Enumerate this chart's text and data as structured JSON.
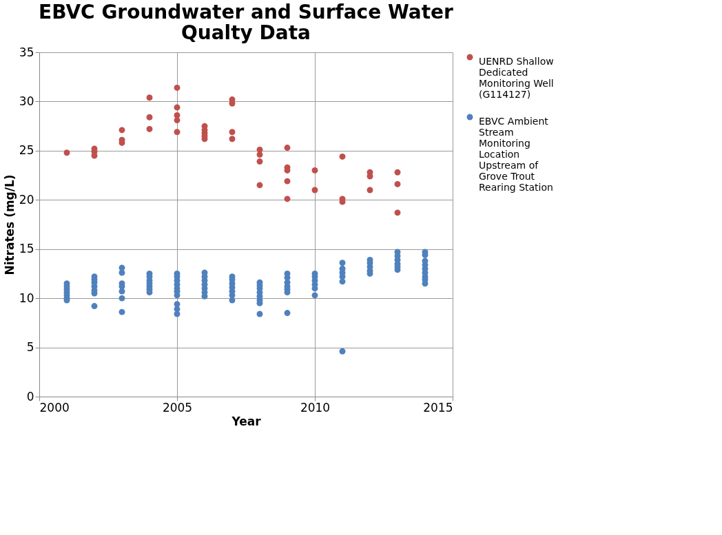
{
  "chart_data": {
    "type": "scatter",
    "title": "EBVC Groundwater and Surface Water Qualty Data",
    "xlabel": "Year",
    "ylabel": "Nitrates (mg/L)",
    "xlim": [
      2000,
      2015
    ],
    "xticks": [
      2000,
      2005,
      2010,
      2015
    ],
    "ylim": [
      0,
      35
    ],
    "yticks": [
      0,
      5,
      10,
      15,
      20,
      25,
      30,
      35
    ],
    "grid": true,
    "legend": "right",
    "marker": "circle",
    "series": [
      {
        "name": "UENRD Shallow Dedicated Monitoring Well (G114127)",
        "color": "#c0504d",
        "x": [
          2001,
          2002,
          2002,
          2002,
          2003,
          2003,
          2003,
          2004,
          2004,
          2004,
          2005,
          2005,
          2005,
          2005,
          2005,
          2006,
          2006,
          2006,
          2006,
          2006,
          2007,
          2007,
          2007,
          2007,
          2008,
          2008,
          2008,
          2008,
          2009,
          2009,
          2009,
          2009,
          2009,
          2010,
          2010,
          2011,
          2011,
          2011,
          2012,
          2012,
          2012,
          2013,
          2013,
          2013
        ],
        "values": [
          24.8,
          25.2,
          24.9,
          24.5,
          27.1,
          26.1,
          25.8,
          30.4,
          28.4,
          27.2,
          31.4,
          29.4,
          28.6,
          28.1,
          26.9,
          27.5,
          27.1,
          26.8,
          26.5,
          26.2,
          30.2,
          29.8,
          26.9,
          26.2,
          25.1,
          24.6,
          23.9,
          21.5,
          25.3,
          23.3,
          23.0,
          21.9,
          20.1,
          23.0,
          21.0,
          24.4,
          20.1,
          19.8,
          22.8,
          22.4,
          21.0,
          22.8,
          21.6,
          18.7
        ]
      },
      {
        "name": "EBVC Ambient Stream Monitoring Location Upstream of Grove Trout Rearing Station",
        "color": "#4f81bd",
        "x": [
          2001,
          2001,
          2001,
          2001,
          2001,
          2001,
          2001,
          2002,
          2002,
          2002,
          2002,
          2002,
          2002,
          2002,
          2003,
          2003,
          2003,
          2003,
          2003,
          2003,
          2003,
          2004,
          2004,
          2004,
          2004,
          2004,
          2004,
          2004,
          2005,
          2005,
          2005,
          2005,
          2005,
          2005,
          2005,
          2005,
          2005,
          2005,
          2006,
          2006,
          2006,
          2006,
          2006,
          2006,
          2006,
          2007,
          2007,
          2007,
          2007,
          2007,
          2007,
          2007,
          2008,
          2008,
          2008,
          2008,
          2008,
          2008,
          2008,
          2008,
          2009,
          2009,
          2009,
          2009,
          2009,
          2009,
          2009,
          2010,
          2010,
          2010,
          2010,
          2010,
          2010,
          2011,
          2011,
          2011,
          2011,
          2011,
          2011,
          2012,
          2012,
          2012,
          2012,
          2012,
          2013,
          2013,
          2013,
          2013,
          2013,
          2013,
          2014,
          2014,
          2014,
          2014,
          2014,
          2014,
          2014,
          2014,
          2014
        ],
        "values": [
          11.5,
          11.2,
          10.9,
          10.6,
          10.3,
          10.0,
          9.8,
          12.2,
          11.9,
          11.6,
          11.2,
          10.8,
          10.5,
          9.2,
          13.1,
          12.6,
          11.5,
          11.2,
          10.7,
          10.0,
          8.6,
          12.5,
          12.2,
          11.8,
          11.5,
          11.2,
          10.9,
          10.6,
          12.5,
          12.2,
          11.8,
          11.4,
          11.0,
          10.7,
          10.3,
          9.4,
          8.9,
          8.4,
          12.6,
          12.2,
          11.8,
          11.4,
          11.0,
          10.6,
          10.2,
          12.2,
          11.9,
          11.5,
          11.1,
          10.7,
          10.3,
          9.8,
          11.6,
          11.3,
          11.0,
          10.6,
          10.2,
          9.8,
          9.5,
          8.4,
          12.5,
          12.1,
          11.6,
          11.2,
          10.9,
          10.6,
          8.5,
          12.5,
          12.2,
          11.8,
          11.4,
          11.0,
          10.3,
          13.6,
          13.0,
          12.6,
          12.2,
          11.7,
          4.6,
          13.9,
          13.6,
          13.2,
          12.8,
          12.5,
          14.7,
          14.3,
          13.9,
          13.5,
          13.2,
          12.9,
          14.7,
          14.4,
          13.8,
          13.4,
          13.0,
          12.6,
          12.2,
          11.9,
          11.5
        ]
      }
    ]
  }
}
